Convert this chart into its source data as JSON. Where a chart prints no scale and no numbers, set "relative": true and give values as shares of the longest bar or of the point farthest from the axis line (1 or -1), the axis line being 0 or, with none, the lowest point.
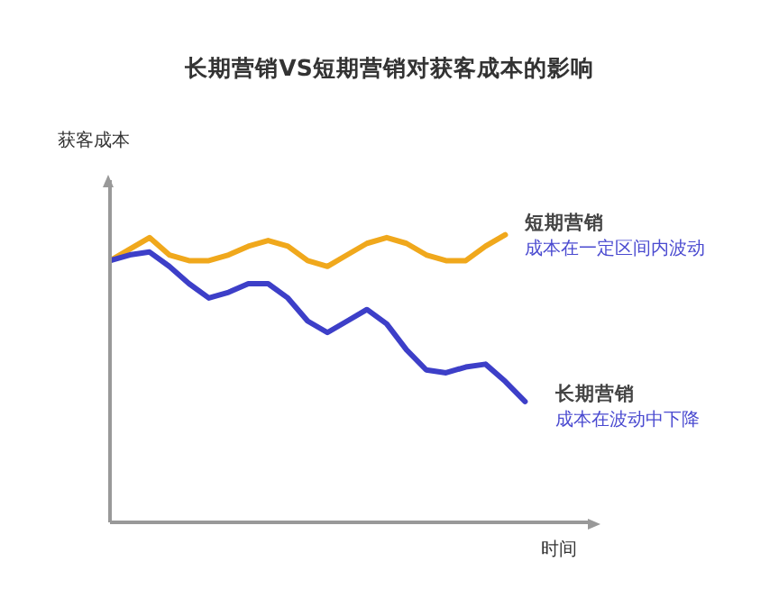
{
  "chart_data": {
    "type": "line",
    "title": "长期营销VS短期营销对获客成本的影响",
    "xlabel": "时间",
    "ylabel": "获客成本",
    "relative": true,
    "legend": false,
    "grid": false,
    "marker": "none",
    "line_style": "solid",
    "categories": [
      null,
      null,
      null,
      null,
      null,
      null,
      null,
      null,
      null,
      null,
      null,
      null,
      null,
      null,
      null,
      null,
      null,
      null,
      null,
      null,
      null,
      null
    ],
    "series": [
      {
        "name": "短期营销",
        "color": "#f0a81c",
        "values": [
          0.91,
          0.95,
          0.99,
          0.93,
          0.91,
          0.91,
          0.93,
          0.96,
          0.98,
          0.96,
          0.91,
          0.89,
          0.93,
          0.97,
          0.99,
          0.97,
          0.93,
          0.91,
          0.91,
          0.96,
          1.0,
          null
        ]
      },
      {
        "name": "长期营销",
        "color": "#3d3fc8",
        "values": [
          0.91,
          0.93,
          0.94,
          0.89,
          0.83,
          0.78,
          0.8,
          0.83,
          0.83,
          0.78,
          0.7,
          0.66,
          0.7,
          0.74,
          0.69,
          0.6,
          0.53,
          0.52,
          0.54,
          0.55,
          0.49,
          0.42
        ]
      }
    ],
    "annotations": [
      "成本在一定区间内波动",
      "成本在波动中下降"
    ]
  }
}
